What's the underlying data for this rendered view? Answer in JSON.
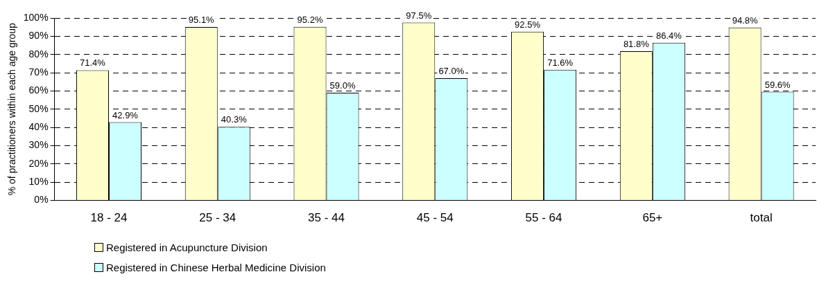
{
  "chart_data": {
    "type": "bar",
    "ylabel": "% of practitioners within each age group",
    "categories": [
      "18 - 24",
      "25 - 34",
      "35 - 44",
      "45 - 54",
      "55 - 64",
      "65+",
      "total"
    ],
    "series": [
      {
        "name": "Registered in Acupuncture Division",
        "color": "#ffffcc",
        "values": [
          71.4,
          95.1,
          95.2,
          97.5,
          92.5,
          81.8,
          94.8
        ],
        "value_labels": [
          "71.4%",
          "95.1%",
          "95.2%",
          "97.5%",
          "92.5%",
          "81.8%",
          "94.8%"
        ]
      },
      {
        "name": "Registered in Chinese Herbal Medicine Division",
        "color": "#ccffff",
        "values": [
          42.9,
          40.3,
          59.0,
          67.0,
          71.6,
          86.4,
          59.6
        ],
        "value_labels": [
          "42.9%",
          "40.3%",
          "59.0%",
          "67.0%",
          "71.6%",
          "86.4%",
          "59.6%"
        ]
      }
    ],
    "ylim": [
      0,
      100
    ],
    "yticks": [
      {
        "value": 0,
        "label": "0%"
      },
      {
        "value": 10,
        "label": "10%"
      },
      {
        "value": 20,
        "label": "20%"
      },
      {
        "value": 30,
        "label": "30%"
      },
      {
        "value": 40,
        "label": "40%"
      },
      {
        "value": 50,
        "label": "50%"
      },
      {
        "value": 60,
        "label": "60%"
      },
      {
        "value": 70,
        "label": "70%"
      },
      {
        "value": 80,
        "label": "80%"
      },
      {
        "value": 90,
        "label": "90%"
      },
      {
        "value": 100,
        "label": "100%"
      }
    ],
    "grid": "y",
    "legend": "bottom left"
  }
}
